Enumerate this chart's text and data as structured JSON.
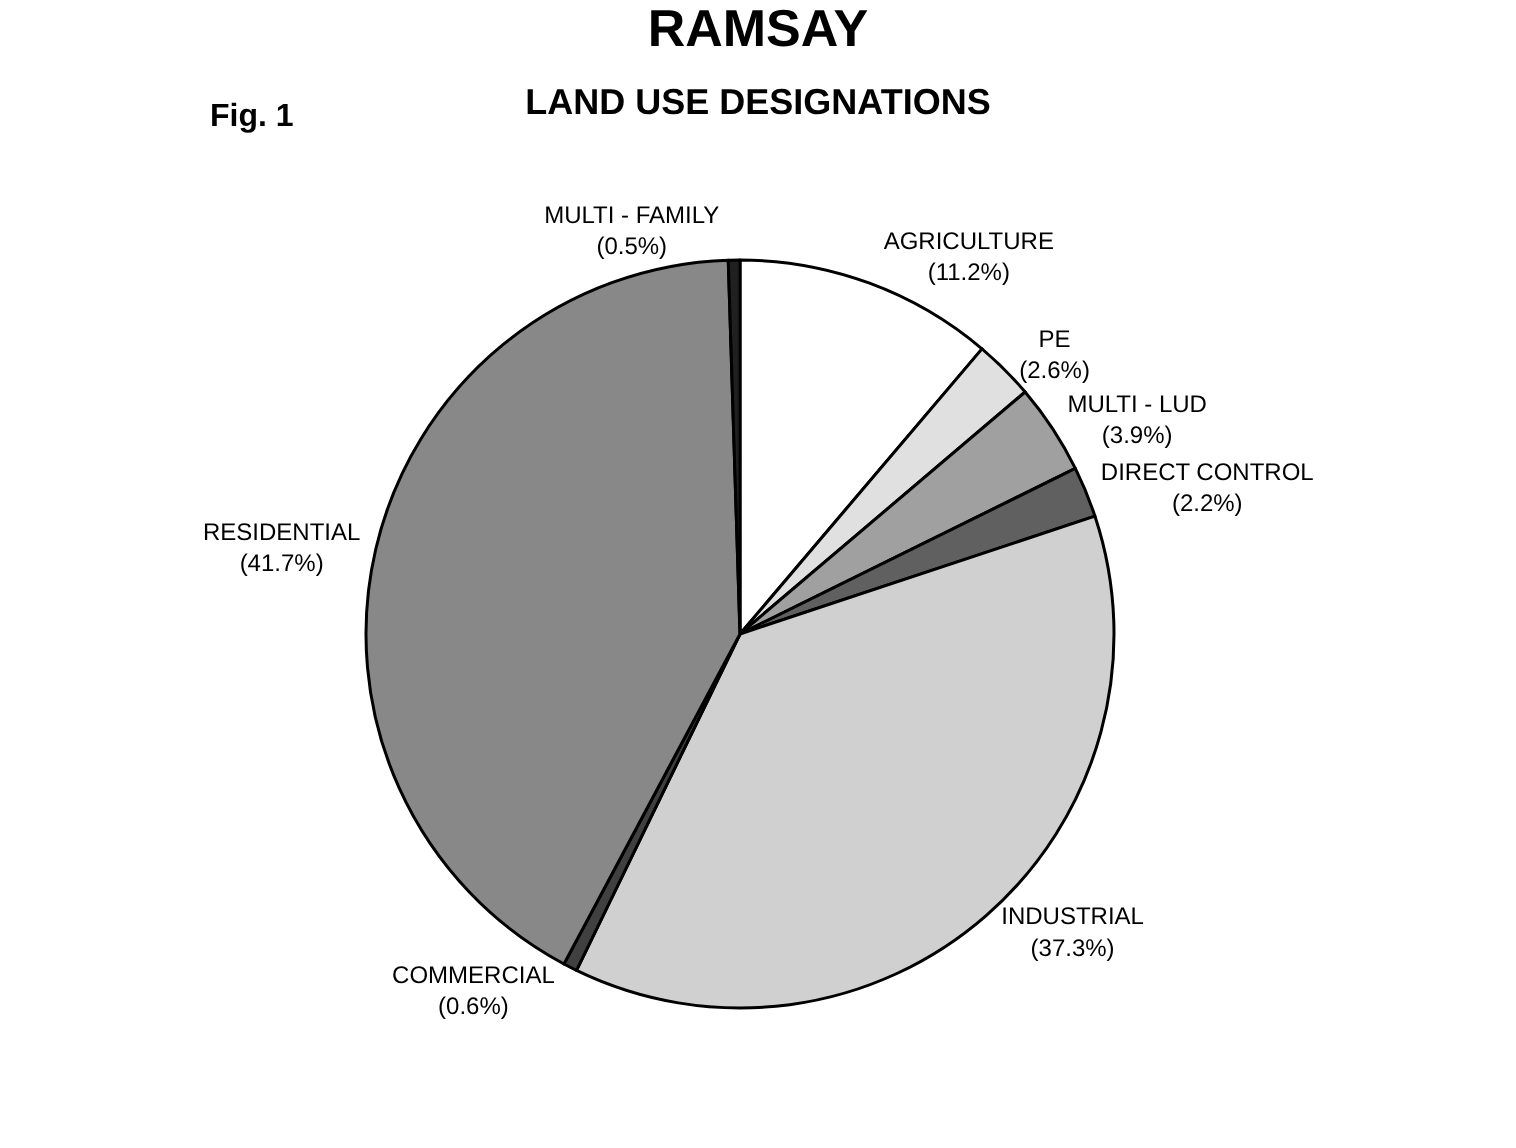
{
  "chart_data": {
    "type": "pie",
    "title": "RAMSAY",
    "subtitle": "LAND USE DESIGNATIONS",
    "annotations": [
      "Fig. 1"
    ],
    "categories": [
      "AGRICULTURE",
      "PE",
      "MULTI - LUD",
      "DIRECT CONTROL",
      "INDUSTRIAL",
      "COMMERCIAL",
      "RESIDENTIAL",
      "MULTI - FAMILY"
    ],
    "values": [
      11.2,
      2.6,
      3.9,
      2.2,
      37.3,
      0.6,
      41.7,
      0.5
    ],
    "value_labels": [
      "(11.2%)",
      "(2.6%)",
      "(3.9%)",
      "(2.2%)",
      "(37.3%)",
      "(0.6%)",
      "(41.7%)",
      "(0.5%)"
    ],
    "colors": [
      "#ffffff",
      "#e0e0e0",
      "#a0a0a0",
      "#606060",
      "#d0d0d0",
      "#404040",
      "#888888",
      "#202020"
    ],
    "legend": false
  }
}
